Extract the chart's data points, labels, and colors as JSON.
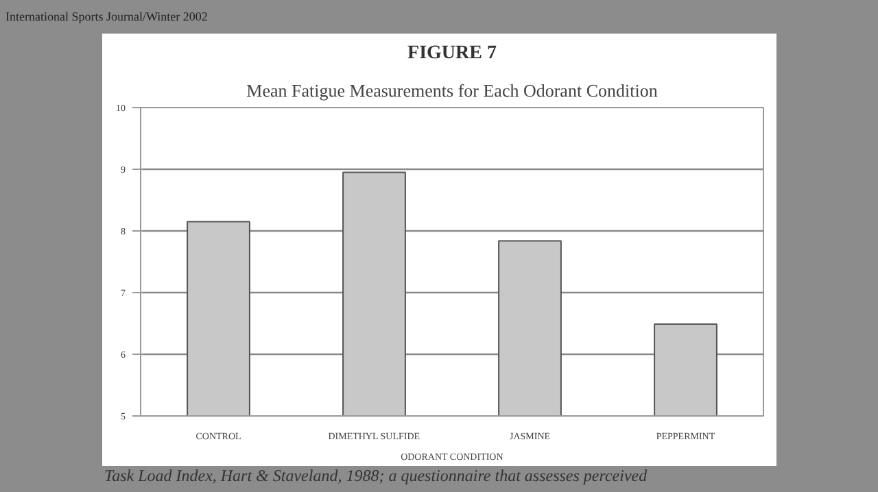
{
  "chart_data": {
    "type": "bar",
    "title": "FIGURE 7",
    "subtitle": "Mean Fatigue Measurements for Each Odorant Condition",
    "xlabel": "ODORANT CONDITION",
    "categories": [
      "CONTROL",
      "DIMETHYL SULFIDE",
      "JASMINE",
      "PEPPERMINT"
    ],
    "values": [
      8.15,
      8.95,
      7.84,
      6.49
    ],
    "color": "#c8c8c8",
    "ylim": [
      5,
      10
    ],
    "yticks": [
      5,
      6,
      7,
      8,
      9,
      10
    ],
    "grid": "y",
    "annotations": [
      "International Sports Journal/Winter 2002",
      "Task Load Index, Hart & Staveland, 1988; a questionnaire that assesses perceived"
    ]
  }
}
